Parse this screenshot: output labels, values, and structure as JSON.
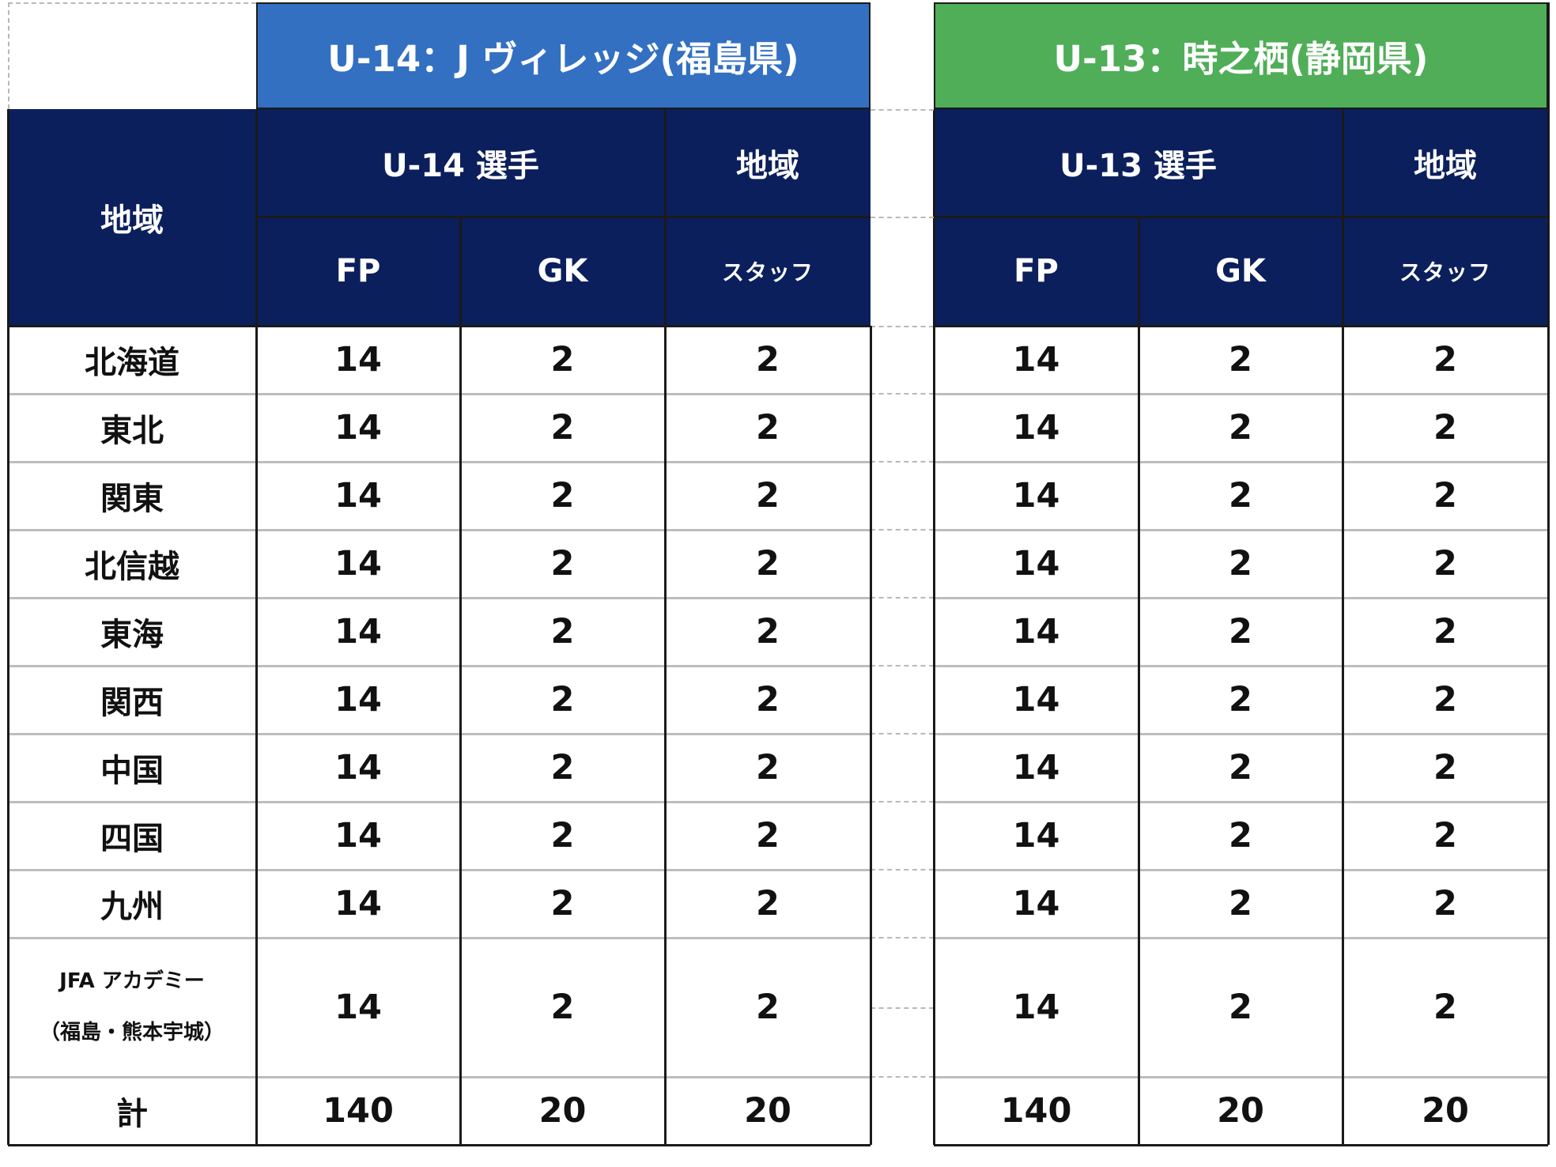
{
  "blocks": [
    {
      "title": "U-14：J ヴィレッジ(福島県)",
      "title_color": "#3370c2",
      "players_header": "U-14 選手",
      "staff_header": "地域",
      "fp": "FP",
      "gk": "GK",
      "staff": "スタッフ"
    },
    {
      "title": "U-13：時之栖(静岡県)",
      "title_color": "#4fae57",
      "players_header": "U-13 選手",
      "staff_header": "地域",
      "fp": "FP",
      "gk": "GK",
      "staff": "スタッフ"
    }
  ],
  "region_header": "地域",
  "header_color": "#0b1f5c",
  "rows": [
    {
      "region": "北海道",
      "u14": [
        "14",
        "2",
        "2"
      ],
      "u13": [
        "14",
        "2",
        "2"
      ]
    },
    {
      "region": "東北",
      "u14": [
        "14",
        "2",
        "2"
      ],
      "u13": [
        "14",
        "2",
        "2"
      ]
    },
    {
      "region": "関東",
      "u14": [
        "14",
        "2",
        "2"
      ],
      "u13": [
        "14",
        "2",
        "2"
      ]
    },
    {
      "region": "北信越",
      "u14": [
        "14",
        "2",
        "2"
      ],
      "u13": [
        "14",
        "2",
        "2"
      ]
    },
    {
      "region": "東海",
      "u14": [
        "14",
        "2",
        "2"
      ],
      "u13": [
        "14",
        "2",
        "2"
      ]
    },
    {
      "region": "関西",
      "u14": [
        "14",
        "2",
        "2"
      ],
      "u13": [
        "14",
        "2",
        "2"
      ]
    },
    {
      "region": "中国",
      "u14": [
        "14",
        "2",
        "2"
      ],
      "u13": [
        "14",
        "2",
        "2"
      ]
    },
    {
      "region": "四国",
      "u14": [
        "14",
        "2",
        "2"
      ],
      "u13": [
        "14",
        "2",
        "2"
      ]
    },
    {
      "region": "九州",
      "u14": [
        "14",
        "2",
        "2"
      ],
      "u13": [
        "14",
        "2",
        "2"
      ]
    }
  ],
  "academy": {
    "line1": "JFA アカデミー",
    "line2": "（福島・熊本宇城）",
    "u14": [
      "14",
      "2",
      "2"
    ],
    "u13": [
      "14",
      "2",
      "2"
    ]
  },
  "total": {
    "label": "計",
    "u14": [
      "140",
      "20",
      "20"
    ],
    "u13": [
      "140",
      "20",
      "20"
    ]
  }
}
